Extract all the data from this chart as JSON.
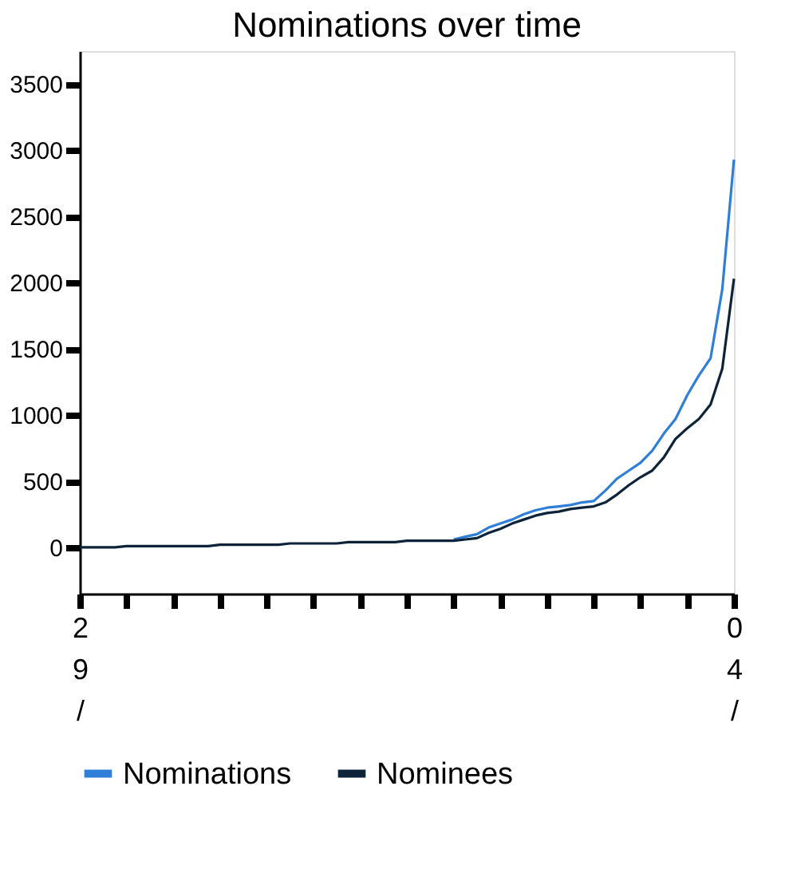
{
  "chart_data": {
    "type": "line",
    "title": "Nominations over time",
    "categories": [
      "29/",
      null,
      null,
      null,
      null,
      null,
      null,
      null,
      null,
      null,
      null,
      null,
      null,
      null,
      null,
      null,
      null,
      null,
      null,
      null,
      null,
      null,
      null,
      null,
      null,
      null,
      null,
      null,
      null,
      null,
      null,
      null,
      null,
      null,
      null,
      null,
      null,
      null,
      null,
      null,
      null,
      null,
      null,
      null,
      null,
      null,
      null,
      null,
      null,
      null,
      null,
      null,
      null,
      null,
      null,
      null,
      "04/"
    ],
    "ylim": [
      -350,
      3750
    ],
    "yticks": [
      0,
      500,
      1000,
      1500,
      2000,
      2500,
      3000,
      3500
    ],
    "grid": false,
    "legend": "bottom",
    "marker": "none",
    "line_style": "solid",
    "series": [
      {
        "name": "Nominations",
        "color": "#2f7ed8",
        "values": [
          null,
          null,
          null,
          null,
          null,
          null,
          null,
          null,
          null,
          null,
          null,
          null,
          null,
          null,
          null,
          null,
          null,
          null,
          null,
          null,
          null,
          null,
          null,
          null,
          null,
          null,
          null,
          null,
          null,
          null,
          null,
          null,
          60,
          80,
          100,
          150,
          180,
          210,
          250,
          280,
          300,
          310,
          320,
          340,
          350,
          430,
          520,
          580,
          640,
          730,
          860,
          970,
          1150,
          1300,
          1430,
          1950,
          2930
        ]
      },
      {
        "name": "Nominees",
        "color": "#0d233a",
        "values": [
          0,
          0,
          0,
          0,
          10,
          10,
          10,
          10,
          10,
          10,
          10,
          10,
          20,
          20,
          20,
          20,
          20,
          20,
          30,
          30,
          30,
          30,
          30,
          40,
          40,
          40,
          40,
          40,
          50,
          50,
          50,
          50,
          50,
          60,
          70,
          110,
          140,
          180,
          210,
          240,
          260,
          270,
          290,
          300,
          310,
          340,
          400,
          470,
          530,
          580,
          680,
          820,
          900,
          970,
          1080,
          1350,
          2030
        ]
      }
    ]
  }
}
